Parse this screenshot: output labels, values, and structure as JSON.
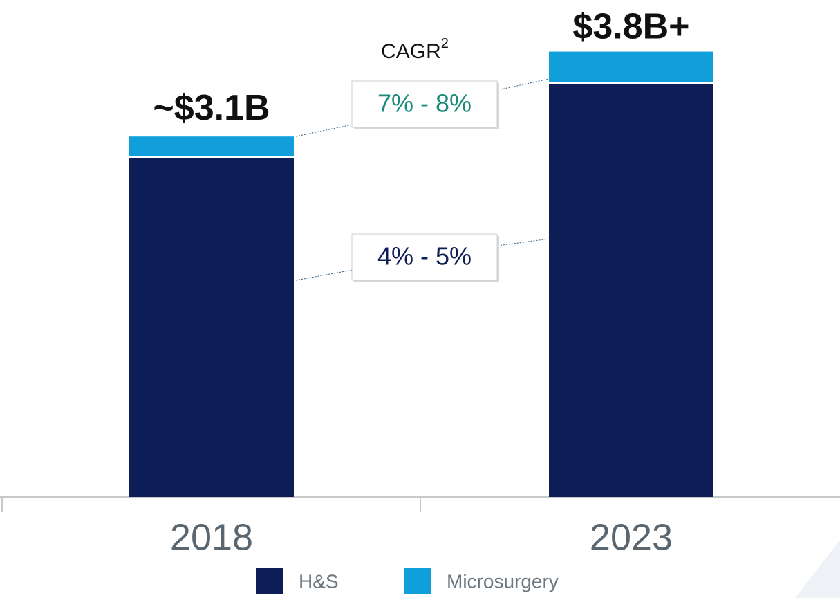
{
  "chart_data": {
    "type": "stacked_bar",
    "categories": [
      "2018",
      "2023"
    ],
    "series": [
      {
        "name": "H&S",
        "color": "#0d1d55",
        "values": [
          2.92,
          3.56
        ]
      },
      {
        "name": "Microsurgery",
        "color": "#119fdb",
        "values": [
          0.18,
          0.27
        ]
      }
    ],
    "totals": {
      "values": [
        3.1,
        3.8
      ],
      "value_labels": [
        "~$3.1B",
        "$3.8B+"
      ]
    },
    "cagr_title": "CAGR",
    "cagr_footnote": "2",
    "annotations": [
      {
        "text": "7% - 8%",
        "color": "#1a8a7a"
      },
      {
        "text": "4% - 5%",
        "color": "#0d1d55"
      }
    ]
  }
}
